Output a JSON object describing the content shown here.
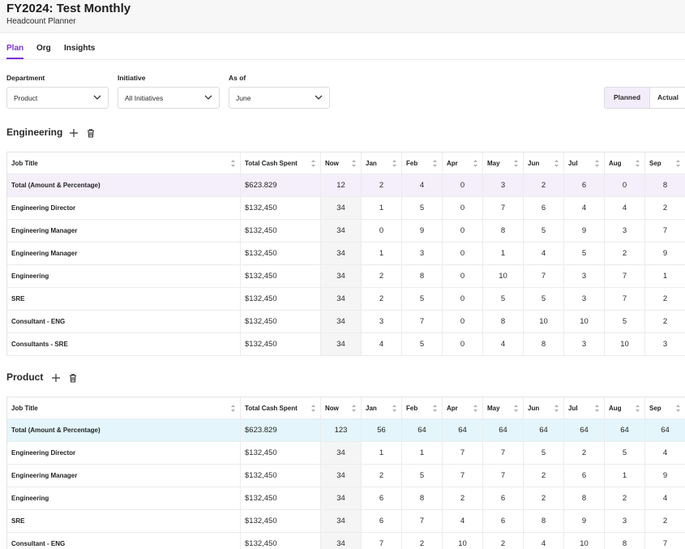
{
  "header": {
    "title": "FY2024: Test Monthly",
    "subtitle": "Headcount Planner"
  },
  "tabs": [
    {
      "label": "Plan",
      "active": true
    },
    {
      "label": "Org",
      "active": false
    },
    {
      "label": "Insights",
      "active": false
    }
  ],
  "filters": {
    "department": {
      "label": "Department",
      "value": "Product"
    },
    "initiative": {
      "label": "Initiative",
      "value": "All Initiatives"
    },
    "as_of": {
      "label": "As of",
      "value": "June"
    }
  },
  "view_toggle": {
    "planned": "Planned",
    "actual": "Actual",
    "selected": "Planned"
  },
  "columns": [
    "Job Title",
    "Total Cash Spent",
    "Now",
    "Jan",
    "Feb",
    "Apr",
    "May",
    "Jun",
    "Jul",
    "Aug",
    "Sep"
  ],
  "sections": [
    {
      "title": "Engineering",
      "rows": [
        {
          "job": "Total (Amount & Percentage)",
          "cash": "$623.829",
          "vals": [
            "12",
            "2",
            "4",
            "0",
            "3",
            "2",
            "6",
            "0",
            "8"
          ]
        },
        {
          "job": "Engineering Director",
          "cash": "$132,450",
          "vals": [
            "34",
            "1",
            "5",
            "0",
            "7",
            "6",
            "4",
            "4",
            "2"
          ]
        },
        {
          "job": "Engineering Manager",
          "cash": "$132,450",
          "vals": [
            "34",
            "0",
            "9",
            "0",
            "8",
            "5",
            "9",
            "3",
            "7"
          ]
        },
        {
          "job": "Engineering Manager",
          "cash": "$132,450",
          "vals": [
            "34",
            "1",
            "3",
            "0",
            "1",
            "4",
            "5",
            "2",
            "9"
          ]
        },
        {
          "job": "Engineering",
          "cash": "$132,450",
          "vals": [
            "34",
            "2",
            "8",
            "0",
            "10",
            "7",
            "3",
            "7",
            "1"
          ]
        },
        {
          "job": "SRE",
          "cash": "$132,450",
          "vals": [
            "34",
            "2",
            "5",
            "0",
            "5",
            "5",
            "3",
            "7",
            "2"
          ]
        },
        {
          "job": "Consultant - ENG",
          "cash": "$132,450",
          "vals": [
            "34",
            "3",
            "7",
            "0",
            "8",
            "10",
            "10",
            "5",
            "2"
          ]
        },
        {
          "job": "Consultants - SRE",
          "cash": "$132,450",
          "vals": [
            "34",
            "4",
            "5",
            "0",
            "4",
            "8",
            "3",
            "10",
            "3"
          ]
        }
      ]
    },
    {
      "title": "Product",
      "rows": [
        {
          "job": "Total (Amount & Percentage)",
          "cash": "$623.829",
          "vals": [
            "123",
            "56",
            "64",
            "64",
            "64",
            "64",
            "64",
            "64",
            "64"
          ]
        },
        {
          "job": "Engineering Director",
          "cash": "$132,450",
          "vals": [
            "34",
            "1",
            "1",
            "7",
            "7",
            "5",
            "2",
            "5",
            "4"
          ]
        },
        {
          "job": "Engineering Manager",
          "cash": "$132,450",
          "vals": [
            "34",
            "2",
            "5",
            "7",
            "7",
            "2",
            "6",
            "1",
            "9"
          ]
        },
        {
          "job": "Engineering",
          "cash": "$132,450",
          "vals": [
            "34",
            "6",
            "8",
            "2",
            "6",
            "2",
            "8",
            "2",
            "4"
          ]
        },
        {
          "job": "SRE",
          "cash": "$132,450",
          "vals": [
            "34",
            "6",
            "7",
            "4",
            "6",
            "8",
            "9",
            "3",
            "2"
          ]
        },
        {
          "job": "Consultant - ENG",
          "cash": "$132,450",
          "vals": [
            "34",
            "7",
            "2",
            "10",
            "2",
            "4",
            "10",
            "8",
            "7"
          ]
        }
      ]
    }
  ],
  "icons": {
    "add": "plus-icon",
    "delete": "trash-icon",
    "sort": "sort-icon",
    "dropdown": "chevron-down-icon"
  },
  "colors": {
    "accent": "#7a33d6",
    "eng_total_bg": "#f4effb",
    "prod_total_bg": "#e4f6fb"
  }
}
